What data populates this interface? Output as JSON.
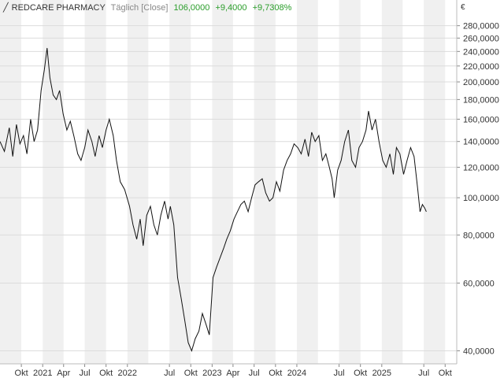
{
  "header": {
    "title": "REDCARE PHARMACY",
    "interval": "Täglich [Close]",
    "last": "106,0000",
    "change": "+9,4000",
    "change_pct": "+9,7308%"
  },
  "currency_symbol": "€",
  "colors": {
    "positive": "#2a9d2a",
    "line": "#111111",
    "band": "#f0f0f0",
    "grid": "#dcdcdc"
  },
  "chart_data": {
    "type": "line",
    "scale": "log",
    "ylim": [
      37,
      300
    ],
    "y_ticks": [
      40,
      60,
      80,
      100,
      120,
      140,
      160,
      180,
      200,
      220,
      240,
      260,
      280
    ],
    "y_tick_labels": [
      "40,0000",
      "60,0000",
      "80,0000",
      "100,0000",
      "120,0000",
      "140,0000",
      "160,0000",
      "180,0000",
      "200,0000",
      "220,0000",
      "240,0000",
      "260,0000",
      "280,0000"
    ],
    "xlim": [
      "2020-07-01",
      "2025-11-20"
    ],
    "x_tick_labels": [
      {
        "date": "2020-10-01",
        "label": "Okt"
      },
      {
        "date": "2021-01-01",
        "label": "2021"
      },
      {
        "date": "2021-04-01",
        "label": "Apr"
      },
      {
        "date": "2021-07-01",
        "label": "Jul"
      },
      {
        "date": "2021-10-01",
        "label": "Okt"
      },
      {
        "date": "2022-01-01",
        "label": "2022"
      },
      {
        "date": "2022-07-01",
        "label": "Jul"
      },
      {
        "date": "2022-10-01",
        "label": "Okt"
      },
      {
        "date": "2023-01-01",
        "label": "2023"
      },
      {
        "date": "2023-04-01",
        "label": "Apr"
      },
      {
        "date": "2023-07-01",
        "label": "Jul"
      },
      {
        "date": "2023-10-01",
        "label": "Okt"
      },
      {
        "date": "2024-01-01",
        "label": "2024"
      },
      {
        "date": "2024-07-01",
        "label": "Jul"
      },
      {
        "date": "2024-10-01",
        "label": "Okt"
      },
      {
        "date": "2025-01-01",
        "label": "2025"
      },
      {
        "date": "2025-07-01",
        "label": "Jul"
      },
      {
        "date": "2025-10-01",
        "label": "Okt"
      }
    ],
    "series": [
      {
        "points": [
          [
            "2020-07-01",
            140
          ],
          [
            "2020-07-20",
            132
          ],
          [
            "2020-08-10",
            152
          ],
          [
            "2020-08-25",
            128
          ],
          [
            "2020-09-10",
            155
          ],
          [
            "2020-09-25",
            138
          ],
          [
            "2020-10-10",
            145
          ],
          [
            "2020-10-25",
            130
          ],
          [
            "2020-11-10",
            160
          ],
          [
            "2020-11-25",
            140
          ],
          [
            "2020-12-10",
            150
          ],
          [
            "2020-12-25",
            190
          ],
          [
            "2021-01-08",
            215
          ],
          [
            "2021-01-20",
            245
          ],
          [
            "2021-02-01",
            205
          ],
          [
            "2021-02-15",
            185
          ],
          [
            "2021-03-01",
            180
          ],
          [
            "2021-03-15",
            190
          ],
          [
            "2021-03-30",
            165
          ],
          [
            "2021-04-15",
            150
          ],
          [
            "2021-04-30",
            158
          ],
          [
            "2021-05-15",
            145
          ],
          [
            "2021-06-01",
            130
          ],
          [
            "2021-06-15",
            125
          ],
          [
            "2021-07-01",
            135
          ],
          [
            "2021-07-15",
            150
          ],
          [
            "2021-08-01",
            140
          ],
          [
            "2021-08-15",
            128
          ],
          [
            "2021-09-01",
            145
          ],
          [
            "2021-09-15",
            135
          ],
          [
            "2021-10-01",
            150
          ],
          [
            "2021-10-15",
            160
          ],
          [
            "2021-11-01",
            145
          ],
          [
            "2021-11-15",
            125
          ],
          [
            "2021-12-01",
            110
          ],
          [
            "2021-12-20",
            105
          ],
          [
            "2022-01-10",
            95
          ],
          [
            "2022-01-25",
            85
          ],
          [
            "2022-02-10",
            78
          ],
          [
            "2022-02-25",
            88
          ],
          [
            "2022-03-10",
            75
          ],
          [
            "2022-03-25",
            90
          ],
          [
            "2022-04-10",
            95
          ],
          [
            "2022-04-25",
            85
          ],
          [
            "2022-05-10",
            80
          ],
          [
            "2022-05-25",
            90
          ],
          [
            "2022-06-10",
            98
          ],
          [
            "2022-06-25",
            88
          ],
          [
            "2022-07-05",
            95
          ],
          [
            "2022-07-20",
            85
          ],
          [
            "2022-08-05",
            62
          ],
          [
            "2022-08-20",
            55
          ],
          [
            "2022-09-05",
            48
          ],
          [
            "2022-09-20",
            42
          ],
          [
            "2022-10-05",
            40
          ],
          [
            "2022-10-20",
            43
          ],
          [
            "2022-11-05",
            45
          ],
          [
            "2022-11-20",
            50
          ],
          [
            "2022-12-05",
            47
          ],
          [
            "2022-12-20",
            44
          ],
          [
            "2023-01-05",
            62
          ],
          [
            "2023-01-20",
            66
          ],
          [
            "2023-02-05",
            70
          ],
          [
            "2023-02-20",
            74
          ],
          [
            "2023-03-05",
            78
          ],
          [
            "2023-03-20",
            82
          ],
          [
            "2023-04-05",
            88
          ],
          [
            "2023-04-20",
            92
          ],
          [
            "2023-05-05",
            96
          ],
          [
            "2023-05-20",
            98
          ],
          [
            "2023-06-05",
            92
          ],
          [
            "2023-06-20",
            100
          ],
          [
            "2023-07-05",
            108
          ],
          [
            "2023-07-20",
            110
          ],
          [
            "2023-08-05",
            112
          ],
          [
            "2023-08-20",
            103
          ],
          [
            "2023-09-05",
            98
          ],
          [
            "2023-09-20",
            100
          ],
          [
            "2023-10-05",
            110
          ],
          [
            "2023-10-20",
            104
          ],
          [
            "2023-11-05",
            118
          ],
          [
            "2023-11-20",
            125
          ],
          [
            "2023-12-05",
            130
          ],
          [
            "2023-12-20",
            138
          ],
          [
            "2024-01-05",
            135
          ],
          [
            "2024-01-20",
            130
          ],
          [
            "2024-02-05",
            142
          ],
          [
            "2024-02-20",
            128
          ],
          [
            "2024-03-05",
            148
          ],
          [
            "2024-03-20",
            140
          ],
          [
            "2024-04-05",
            145
          ],
          [
            "2024-04-20",
            125
          ],
          [
            "2024-05-05",
            130
          ],
          [
            "2024-05-20",
            120
          ],
          [
            "2024-06-01",
            112
          ],
          [
            "2024-06-10",
            100
          ],
          [
            "2024-06-25",
            118
          ],
          [
            "2024-07-10",
            125
          ],
          [
            "2024-07-25",
            140
          ],
          [
            "2024-08-10",
            150
          ],
          [
            "2024-08-25",
            125
          ],
          [
            "2024-09-10",
            120
          ],
          [
            "2024-09-25",
            135
          ],
          [
            "2024-10-10",
            140
          ],
          [
            "2024-10-25",
            150
          ],
          [
            "2024-11-05",
            168
          ],
          [
            "2024-11-20",
            150
          ],
          [
            "2024-12-05",
            160
          ],
          [
            "2024-12-20",
            140
          ],
          [
            "2025-01-05",
            125
          ],
          [
            "2025-01-20",
            120
          ],
          [
            "2025-02-05",
            130
          ],
          [
            "2025-02-20",
            115
          ],
          [
            "2025-03-05",
            135
          ],
          [
            "2025-03-20",
            130
          ],
          [
            "2025-04-05",
            115
          ],
          [
            "2025-04-20",
            125
          ],
          [
            "2025-05-05",
            135
          ],
          [
            "2025-05-20",
            128
          ],
          [
            "2025-06-05",
            105
          ],
          [
            "2025-06-15",
            92
          ],
          [
            "2025-06-25",
            96
          ],
          [
            "2025-07-05",
            94
          ],
          [
            "2025-07-12",
            92
          ]
        ]
      }
    ]
  }
}
